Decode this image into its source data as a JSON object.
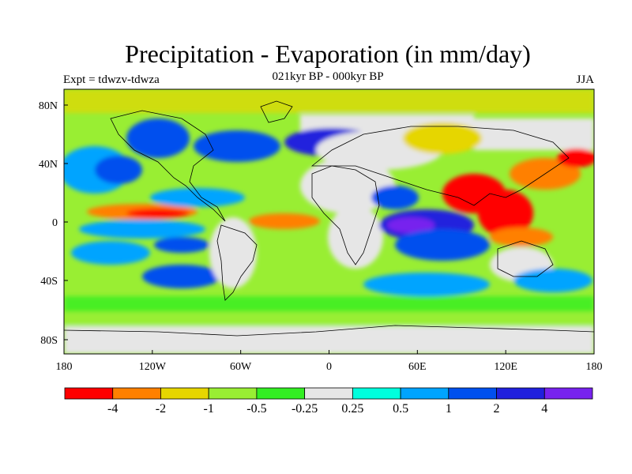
{
  "title": "Precipitation - Evaporation (in mm/day)",
  "subtitle": "021kyr BP - 000kyr BP",
  "left_label": "Expt = tdwzv-tdwza",
  "right_label": "JJA",
  "x_ticks": [
    "180",
    "120W",
    "60W",
    "0",
    "60E",
    "120E",
    "180"
  ],
  "y_ticks": [
    "80N",
    "40N",
    "0",
    "40S",
    "80S"
  ],
  "colorbar": {
    "colors": [
      "#ff0000",
      "#ff8000",
      "#e6d600",
      "#99ee33",
      "#33ee22",
      "#e6e6e6",
      "#00ffdd",
      "#00a4ff",
      "#0050ee",
      "#2020dd",
      "#7722ee"
    ],
    "labels": [
      "-4",
      "-2",
      "-1",
      "-0.5",
      "-0.25",
      "0.25",
      "0.5",
      "1",
      "2",
      "4"
    ]
  }
}
